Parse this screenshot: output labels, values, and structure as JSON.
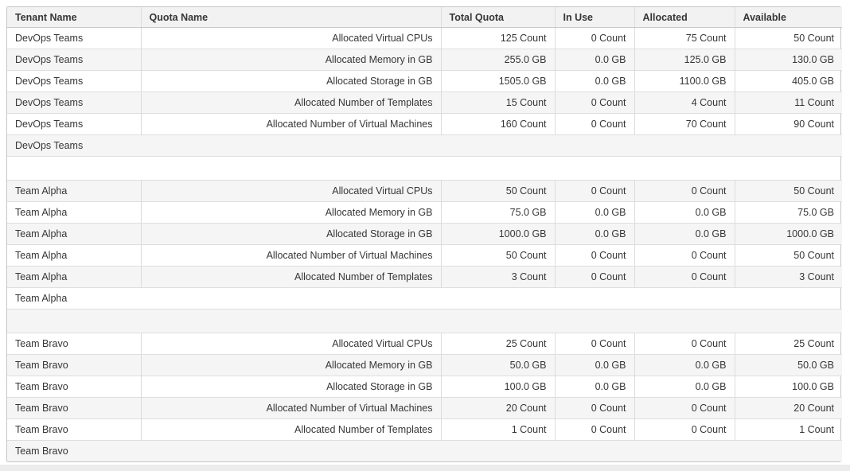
{
  "table": {
    "columns": [
      {
        "key": "tenant",
        "label": "Tenant Name"
      },
      {
        "key": "quota",
        "label": "Quota Name"
      },
      {
        "key": "total",
        "label": "Total Quota"
      },
      {
        "key": "in_use",
        "label": "In Use"
      },
      {
        "key": "allocated",
        "label": "Allocated"
      },
      {
        "key": "available",
        "label": "Available"
      }
    ],
    "rows": [
      {
        "type": "data",
        "tenant": "DevOps Teams",
        "quota": "Allocated Virtual CPUs",
        "total": "125 Count",
        "in_use": "0 Count",
        "allocated": "75 Count",
        "available": "50 Count"
      },
      {
        "type": "data",
        "tenant": "DevOps Teams",
        "quota": "Allocated Memory in GB",
        "total": "255.0 GB",
        "in_use": "0.0 GB",
        "allocated": "125.0 GB",
        "available": "130.0 GB"
      },
      {
        "type": "data",
        "tenant": "DevOps Teams",
        "quota": "Allocated Storage in GB",
        "total": "1505.0 GB",
        "in_use": "0.0 GB",
        "allocated": "1100.0 GB",
        "available": "405.0 GB"
      },
      {
        "type": "data",
        "tenant": "DevOps Teams",
        "quota": "Allocated Number of Templates",
        "total": "15 Count",
        "in_use": "0 Count",
        "allocated": "4 Count",
        "available": "11 Count"
      },
      {
        "type": "data",
        "tenant": "DevOps Teams",
        "quota": "Allocated Number of Virtual Machines",
        "total": "160 Count",
        "in_use": "0 Count",
        "allocated": "70 Count",
        "available": "90 Count"
      },
      {
        "type": "group",
        "tenant": "DevOps Teams"
      },
      {
        "type": "spacer"
      },
      {
        "type": "data",
        "tenant": "Team Alpha",
        "quota": "Allocated Virtual CPUs",
        "total": "50 Count",
        "in_use": "0 Count",
        "allocated": "0 Count",
        "available": "50 Count"
      },
      {
        "type": "data",
        "tenant": "Team Alpha",
        "quota": "Allocated Memory in GB",
        "total": "75.0 GB",
        "in_use": "0.0 GB",
        "allocated": "0.0 GB",
        "available": "75.0 GB"
      },
      {
        "type": "data",
        "tenant": "Team Alpha",
        "quota": "Allocated Storage in GB",
        "total": "1000.0 GB",
        "in_use": "0.0 GB",
        "allocated": "0.0 GB",
        "available": "1000.0 GB"
      },
      {
        "type": "data",
        "tenant": "Team Alpha",
        "quota": "Allocated Number of Virtual Machines",
        "total": "50 Count",
        "in_use": "0 Count",
        "allocated": "0 Count",
        "available": "50 Count"
      },
      {
        "type": "data",
        "tenant": "Team Alpha",
        "quota": "Allocated Number of Templates",
        "total": "3 Count",
        "in_use": "0 Count",
        "allocated": "0 Count",
        "available": "3 Count"
      },
      {
        "type": "group",
        "tenant": "Team Alpha"
      },
      {
        "type": "spacer"
      },
      {
        "type": "data",
        "tenant": "Team Bravo",
        "quota": "Allocated Virtual CPUs",
        "total": "25 Count",
        "in_use": "0 Count",
        "allocated": "0 Count",
        "available": "25 Count"
      },
      {
        "type": "data",
        "tenant": "Team Bravo",
        "quota": "Allocated Memory in GB",
        "total": "50.0 GB",
        "in_use": "0.0 GB",
        "allocated": "0.0 GB",
        "available": "50.0 GB"
      },
      {
        "type": "data",
        "tenant": "Team Bravo",
        "quota": "Allocated Storage in GB",
        "total": "100.0 GB",
        "in_use": "0.0 GB",
        "allocated": "0.0 GB",
        "available": "100.0 GB"
      },
      {
        "type": "data",
        "tenant": "Team Bravo",
        "quota": "Allocated Number of Virtual Machines",
        "total": "20 Count",
        "in_use": "0 Count",
        "allocated": "0 Count",
        "available": "20 Count"
      },
      {
        "type": "data",
        "tenant": "Team Bravo",
        "quota": "Allocated Number of Templates",
        "total": "1 Count",
        "in_use": "0 Count",
        "allocated": "0 Count",
        "available": "1 Count"
      },
      {
        "type": "group",
        "tenant": "Team Bravo"
      }
    ]
  }
}
